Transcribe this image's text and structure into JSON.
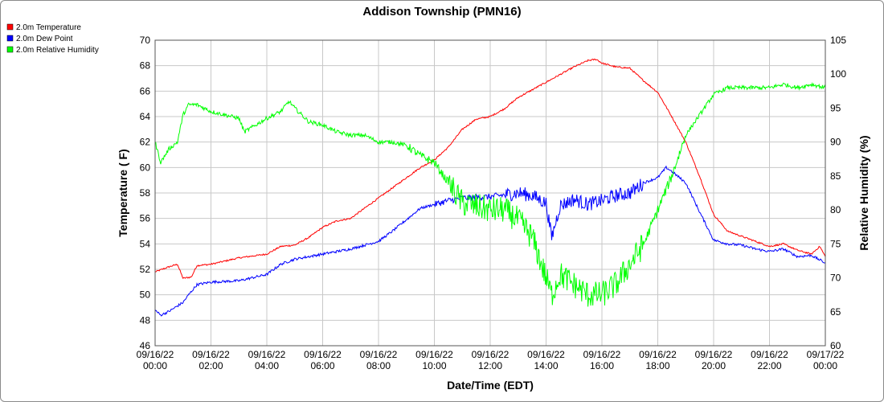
{
  "chart_data": {
    "type": "line",
    "title": "Addison Township (PMN16)",
    "xlabel": "Date/Time (EDT)",
    "ylabel_left": "Temperature ( F)",
    "ylabel_right": "Relative Humidity (%)",
    "x_ticks": [
      [
        "09/16/22",
        "00:00"
      ],
      [
        "09/16/22",
        "02:00"
      ],
      [
        "09/16/22",
        "04:00"
      ],
      [
        "09/16/22",
        "06:00"
      ],
      [
        "09/16/22",
        "08:00"
      ],
      [
        "09/16/22",
        "10:00"
      ],
      [
        "09/16/22",
        "12:00"
      ],
      [
        "09/16/22",
        "14:00"
      ],
      [
        "09/16/22",
        "16:00"
      ],
      [
        "09/16/22",
        "18:00"
      ],
      [
        "09/16/22",
        "20:00"
      ],
      [
        "09/16/22",
        "22:00"
      ],
      [
        "09/17/22",
        "00:00"
      ]
    ],
    "xlim_hours": [
      0,
      24
    ],
    "ylim_left": [
      46,
      70
    ],
    "yticks_left": [
      "46",
      "48",
      "50",
      "52",
      "54",
      "56",
      "58",
      "60",
      "62",
      "64",
      "66",
      "68",
      "70"
    ],
    "ylim_right": [
      60,
      105
    ],
    "yticks_right": [
      "60",
      "65",
      "70",
      "75",
      "80",
      "85",
      "90",
      "95",
      "100",
      "105"
    ],
    "grid": true,
    "legend_position": "top-left",
    "series": [
      {
        "name": "2.0m Temperature",
        "color": "#ff0000",
        "axis": "left",
        "x": [
          0,
          0.5,
          0.8,
          1.0,
          1.3,
          1.5,
          2.0,
          3.0,
          4.0,
          4.5,
          5.0,
          5.5,
          6.0,
          6.5,
          7.0,
          7.5,
          8.0,
          8.5,
          9.0,
          9.5,
          10.0,
          10.5,
          11.0,
          11.5,
          12.0,
          12.5,
          13.0,
          13.5,
          14.0,
          14.5,
          15.0,
          15.5,
          15.8,
          16.0,
          16.5,
          17.0,
          17.5,
          18.0,
          18.5,
          19.0,
          19.5,
          20.0,
          20.5,
          21.0,
          21.5,
          22.0,
          22.5,
          23.0,
          23.5,
          23.8,
          24.0
        ],
        "y": [
          51.8,
          52.2,
          52.4,
          51.3,
          51.4,
          52.3,
          52.4,
          52.9,
          53.2,
          53.8,
          53.9,
          54.5,
          55.3,
          55.8,
          56.0,
          56.8,
          57.6,
          58.4,
          59.2,
          60.0,
          60.6,
          61.6,
          63.0,
          63.8,
          64.0,
          64.6,
          65.5,
          66.1,
          66.7,
          67.3,
          67.9,
          68.4,
          68.5,
          68.2,
          67.9,
          67.8,
          66.8,
          65.9,
          64.0,
          62.0,
          59.3,
          56.3,
          55.0,
          54.6,
          54.2,
          53.8,
          54.0,
          53.5,
          53.2,
          53.8,
          53.0
        ]
      },
      {
        "name": "2.0m Dew Point",
        "color": "#0000ff",
        "axis": "left",
        "x": [
          0,
          0.2,
          0.5,
          1.0,
          1.2,
          1.5,
          2.0,
          3.0,
          4.0,
          4.5,
          5.0,
          6.0,
          7.0,
          8.0,
          8.5,
          9.0,
          9.5,
          10.0,
          10.5,
          11.0,
          12.0,
          13.0,
          13.5,
          14.0,
          14.2,
          14.5,
          15.0,
          15.5,
          16.0,
          16.5,
          17.0,
          17.5,
          18.0,
          18.3,
          18.5,
          19.0,
          19.5,
          20.0,
          20.5,
          21.0,
          21.5,
          22.0,
          22.5,
          23.0,
          23.5,
          24.0
        ],
        "y": [
          48.8,
          48.4,
          48.7,
          49.4,
          50.0,
          50.8,
          51.0,
          51.1,
          51.6,
          52.4,
          52.8,
          53.2,
          53.6,
          54.2,
          55.0,
          55.9,
          56.8,
          57.1,
          57.4,
          57.6,
          57.7,
          58.0,
          57.8,
          57.2,
          54.5,
          57.0,
          57.5,
          57.1,
          57.4,
          57.8,
          58.0,
          58.8,
          59.2,
          60.0,
          59.7,
          58.8,
          56.5,
          54.3,
          54.0,
          53.9,
          53.6,
          53.4,
          53.6,
          53.0,
          53.1,
          52.5
        ]
      },
      {
        "name": "2.0m Relative Humidity",
        "color": "#00ff00",
        "axis": "right",
        "x": [
          0,
          0.2,
          0.5,
          0.8,
          1.0,
          1.2,
          1.5,
          2.0,
          3.0,
          3.2,
          4.0,
          4.5,
          4.8,
          5.0,
          5.5,
          6.0,
          6.5,
          7.0,
          7.5,
          8.0,
          8.5,
          9.0,
          9.5,
          10.0,
          10.5,
          11.0,
          11.5,
          12.0,
          12.5,
          13.0,
          13.5,
          14.0,
          14.2,
          14.5,
          15.0,
          15.5,
          16.0,
          16.5,
          17.0,
          17.5,
          18.0,
          18.5,
          19.0,
          19.5,
          20.0,
          20.5,
          21.0,
          21.5,
          22.0,
          22.5,
          23.0,
          23.5,
          24.0
        ],
        "y": [
          90.0,
          87.0,
          89.0,
          90.0,
          94.0,
          95.5,
          95.5,
          94.5,
          93.5,
          91.5,
          93.5,
          94.5,
          96.0,
          95.0,
          93.0,
          92.5,
          91.5,
          91.0,
          91.0,
          90.0,
          90.0,
          89.5,
          88.0,
          87.0,
          84.0,
          81.0,
          80.5,
          80.0,
          80.0,
          78.5,
          76.0,
          70.0,
          67.5,
          70.5,
          69.0,
          67.5,
          67.5,
          69.0,
          72.0,
          75.0,
          80.0,
          85.0,
          91.0,
          94.0,
          97.0,
          98.0,
          98.0,
          98.0,
          98.0,
          98.5,
          98.0,
          98.5,
          98.0
        ]
      }
    ]
  }
}
